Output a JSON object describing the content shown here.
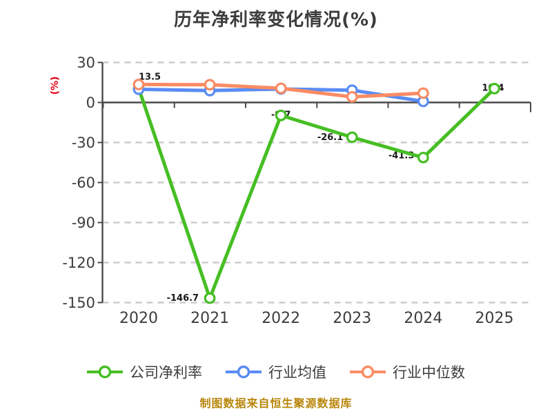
{
  "title": "历年净利率变化情况(%)",
  "y_axis_unit": "(%)",
  "footer": "制图数据来自恒生聚源数据库",
  "colors": {
    "company": "#46be23",
    "industry_avg": "#5a8cf5",
    "industry_median": "#fa8c64",
    "grid": "#cbcbcb",
    "axis": "#4a4a4a",
    "tick_text": "#3d3d3d",
    "value_label": "#1a1a1a",
    "unit_red": "#e60012",
    "footer_gold": "#b8860b"
  },
  "chart_data": {
    "type": "line",
    "categories": [
      "2020",
      "2021",
      "2022",
      "2023",
      "2024",
      "2025"
    ],
    "series": [
      {
        "name": "公司净利率",
        "slug": "company-net-margin",
        "color": "#46be23",
        "values": [
          10.6,
          -146.7,
          -9.7,
          -26.1,
          -41.3,
          10.4
        ]
      },
      {
        "name": "行业均值",
        "slug": "industry-average",
        "color": "#5a8cf5",
        "values": [
          9.9,
          8.9,
          10.1,
          9.2,
          0.8,
          null
        ]
      },
      {
        "name": "行业中位数",
        "slug": "industry-median",
        "color": "#fa8c64",
        "values": [
          13.5,
          13.3,
          10.6,
          4.2,
          7.0,
          null
        ]
      }
    ],
    "yticks": [
      "30",
      "0",
      "-30",
      "-60",
      "-90",
      "-120",
      "-150"
    ],
    "ylim": [
      -150,
      30
    ],
    "ytick_step": 30,
    "grid": "horizontal dashed",
    "legend_position": "bottom",
    "point_labels": [
      {
        "x": "2020",
        "series": "行业中位数",
        "text": "13.5"
      },
      {
        "x": "2021",
        "series": "公司净利率",
        "text": "-146.7"
      },
      {
        "x": "2022",
        "series": "公司净利率",
        "text": "-9.7"
      },
      {
        "x": "2023",
        "series": "公司净利率",
        "text": "-26.1"
      },
      {
        "x": "2024",
        "series": "公司净利率",
        "text": "-41.3"
      },
      {
        "x": "2025",
        "series": "公司净利率",
        "text": "10.4"
      }
    ]
  }
}
